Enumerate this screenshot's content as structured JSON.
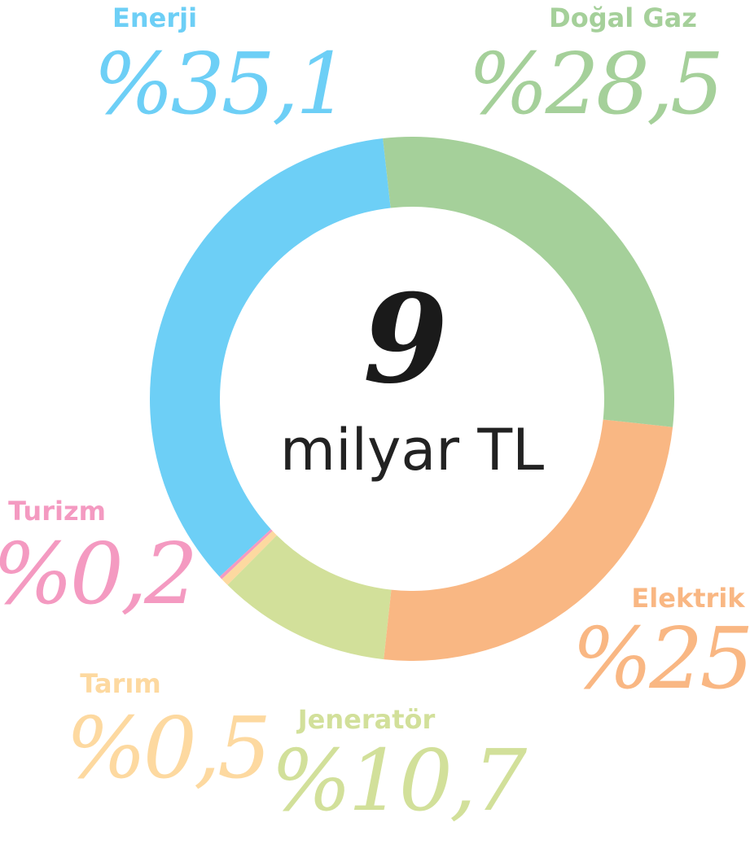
{
  "chart_data": {
    "type": "pie",
    "donut": true,
    "center_value": "9",
    "center_label": "milyar TL",
    "categories": [
      "Doğal Gaz",
      "Elektrik",
      "Jeneratör",
      "Tarım",
      "Turizm",
      "Enerji"
    ],
    "values": [
      28.5,
      25,
      10.7,
      0.5,
      0.2,
      35.1
    ],
    "value_labels": [
      "%28,5",
      "%25",
      "%10,7",
      "%0,5",
      "%0,2",
      "%35,1"
    ],
    "colors": [
      "#a5d09a",
      "#f9b783",
      "#d2e09a",
      "#fdd9a0",
      "#f49ac1",
      "#6dcff6"
    ]
  }
}
